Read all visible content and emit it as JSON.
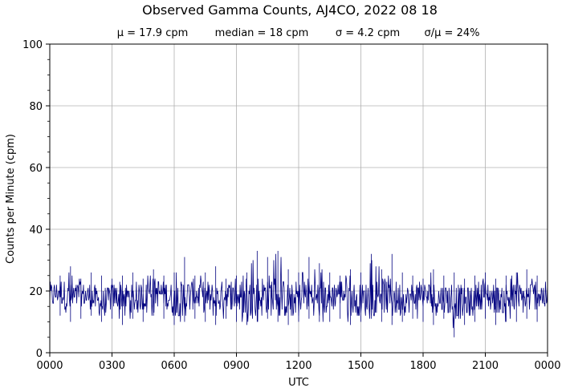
{
  "chart_data": {
    "type": "line",
    "title": "Observed Gamma Counts, AJ4CO, 2022 08 18",
    "stats": [
      "μ = 17.9 cpm",
      "median = 18 cpm",
      "σ = 4.2 cpm",
      "σ/μ = 24%"
    ],
    "xlabel": "UTC",
    "ylabel": "Counts per Minute (cpm)",
    "x_unit": "minutes",
    "xlim": [
      0,
      1440
    ],
    "ylim": [
      0,
      100
    ],
    "x_ticks": [
      {
        "value": 0,
        "label": "0000"
      },
      {
        "value": 180,
        "label": "0300"
      },
      {
        "value": 360,
        "label": "0600"
      },
      {
        "value": 540,
        "label": "0900"
      },
      {
        "value": 720,
        "label": "1200"
      },
      {
        "value": 900,
        "label": "1500"
      },
      {
        "value": 1080,
        "label": "1800"
      },
      {
        "value": 1260,
        "label": "2100"
      },
      {
        "value": 1440,
        "label": "0000"
      }
    ],
    "y_ticks": [
      {
        "value": 0,
        "label": "0"
      },
      {
        "value": 20,
        "label": "20"
      },
      {
        "value": 40,
        "label": "40"
      },
      {
        "value": 60,
        "label": "60"
      },
      {
        "value": 80,
        "label": "80"
      },
      {
        "value": 100,
        "label": "100"
      }
    ],
    "grid": true,
    "series": [
      {
        "color": "#00007f",
        "x": [
          0,
          30,
          60,
          90,
          120,
          150,
          180,
          210,
          240,
          270,
          300,
          330,
          360,
          390,
          420,
          450,
          480,
          510,
          540,
          570,
          600,
          630,
          660,
          690,
          720,
          750,
          780,
          810,
          840,
          870,
          900,
          930,
          960,
          990,
          1020,
          1050,
          1080,
          1110,
          1140,
          1170,
          1200,
          1230,
          1260,
          1290,
          1320,
          1350,
          1380,
          1410,
          1440
        ],
        "y": [
          18,
          20,
          17,
          19,
          18,
          16,
          18,
          19,
          17,
          18,
          20,
          19,
          17,
          18,
          19,
          18,
          17,
          19,
          18,
          17,
          18,
          19,
          18,
          17,
          18,
          19,
          17,
          18,
          20,
          18,
          17,
          18,
          19,
          18,
          17,
          18,
          19,
          17,
          18,
          17,
          16,
          18,
          19,
          17,
          18,
          17,
          18,
          19,
          18
        ],
        "min_envelope": [
          11,
          12,
          10,
          11,
          12,
          10,
          11,
          9,
          11,
          10,
          12,
          11,
          9,
          10,
          11,
          10,
          9,
          11,
          10,
          9,
          10,
          11,
          10,
          9,
          10,
          11,
          10,
          10,
          11,
          9,
          10,
          11,
          10,
          9,
          10,
          11,
          10,
          9,
          11,
          5,
          9,
          10,
          11,
          9,
          10,
          10,
          11,
          10,
          10
        ],
        "max_envelope": [
          26,
          25,
          28,
          24,
          26,
          25,
          24,
          25,
          26,
          24,
          27,
          25,
          26,
          31,
          25,
          26,
          28,
          24,
          25,
          26,
          33,
          31,
          33,
          27,
          26,
          31,
          29,
          26,
          25,
          27,
          26,
          32,
          27,
          32,
          26,
          25,
          24,
          27,
          25,
          26,
          24,
          25,
          26,
          24,
          25,
          26,
          27,
          25,
          24
        ]
      }
    ]
  }
}
